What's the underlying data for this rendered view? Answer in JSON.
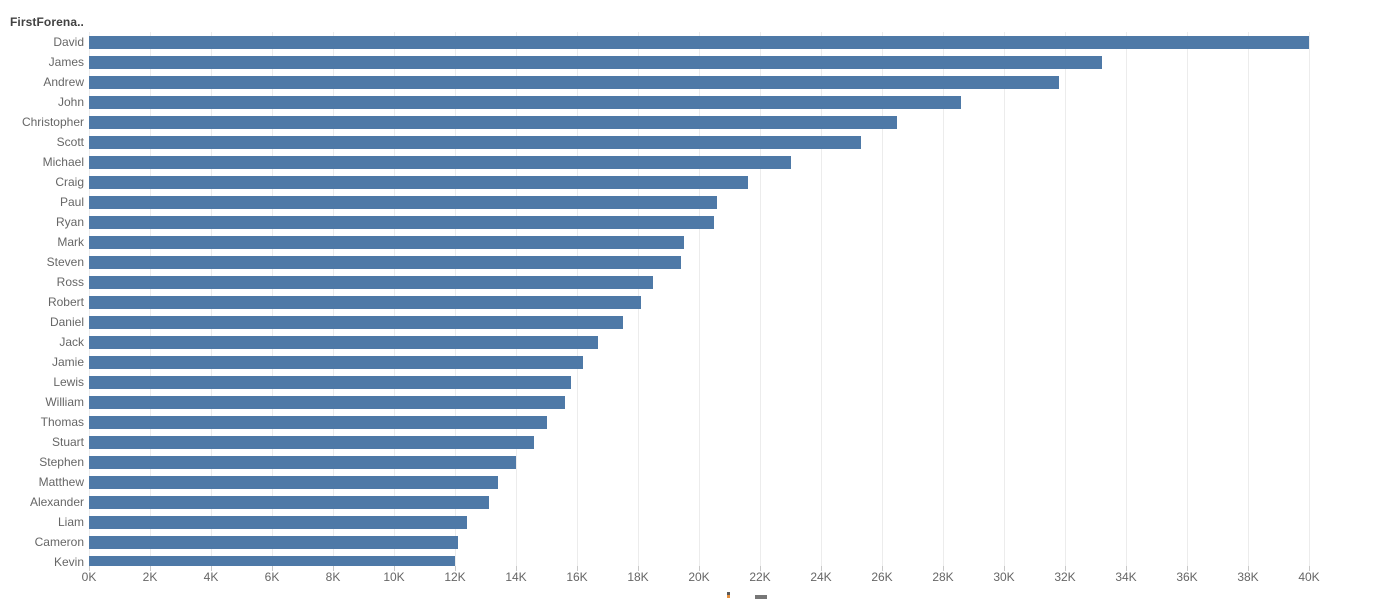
{
  "header": {
    "field_label": "FirstForena.."
  },
  "chart_data": {
    "type": "bar",
    "orientation": "horizontal",
    "title": "",
    "xlabel": "",
    "ylabel": "FirstForena..",
    "xlim": [
      0,
      40000
    ],
    "grid": true,
    "bar_color": "#4e79a7",
    "gridline_color": "#ececec",
    "label_color": "#666666",
    "categories": [
      "David",
      "James",
      "Andrew",
      "John",
      "Christopher",
      "Scott",
      "Michael",
      "Craig",
      "Paul",
      "Ryan",
      "Mark",
      "Steven",
      "Ross",
      "Robert",
      "Daniel",
      "Jack",
      "Jamie",
      "Lewis",
      "William",
      "Thomas",
      "Stuart",
      "Stephen",
      "Matthew",
      "Alexander",
      "Liam",
      "Cameron",
      "Kevin"
    ],
    "values": [
      40000,
      33200,
      31800,
      28600,
      26500,
      25300,
      23000,
      21600,
      20600,
      20500,
      19500,
      19400,
      18500,
      18100,
      17500,
      16700,
      16200,
      15800,
      15600,
      15000,
      14600,
      14000,
      13400,
      13100,
      12400,
      12100,
      12000
    ],
    "x_ticks": [
      "0K",
      "2K",
      "4K",
      "6K",
      "8K",
      "10K",
      "12K",
      "14K",
      "16K",
      "18K",
      "20K",
      "22K",
      "24K",
      "26K",
      "28K",
      "30K",
      "32K",
      "34K",
      "36K",
      "38K",
      "40K"
    ],
    "x_tick_values": [
      0,
      2000,
      4000,
      6000,
      8000,
      10000,
      12000,
      14000,
      16000,
      18000,
      20000,
      22000,
      24000,
      26000,
      28000,
      30000,
      32000,
      34000,
      36000,
      38000,
      40000
    ]
  }
}
